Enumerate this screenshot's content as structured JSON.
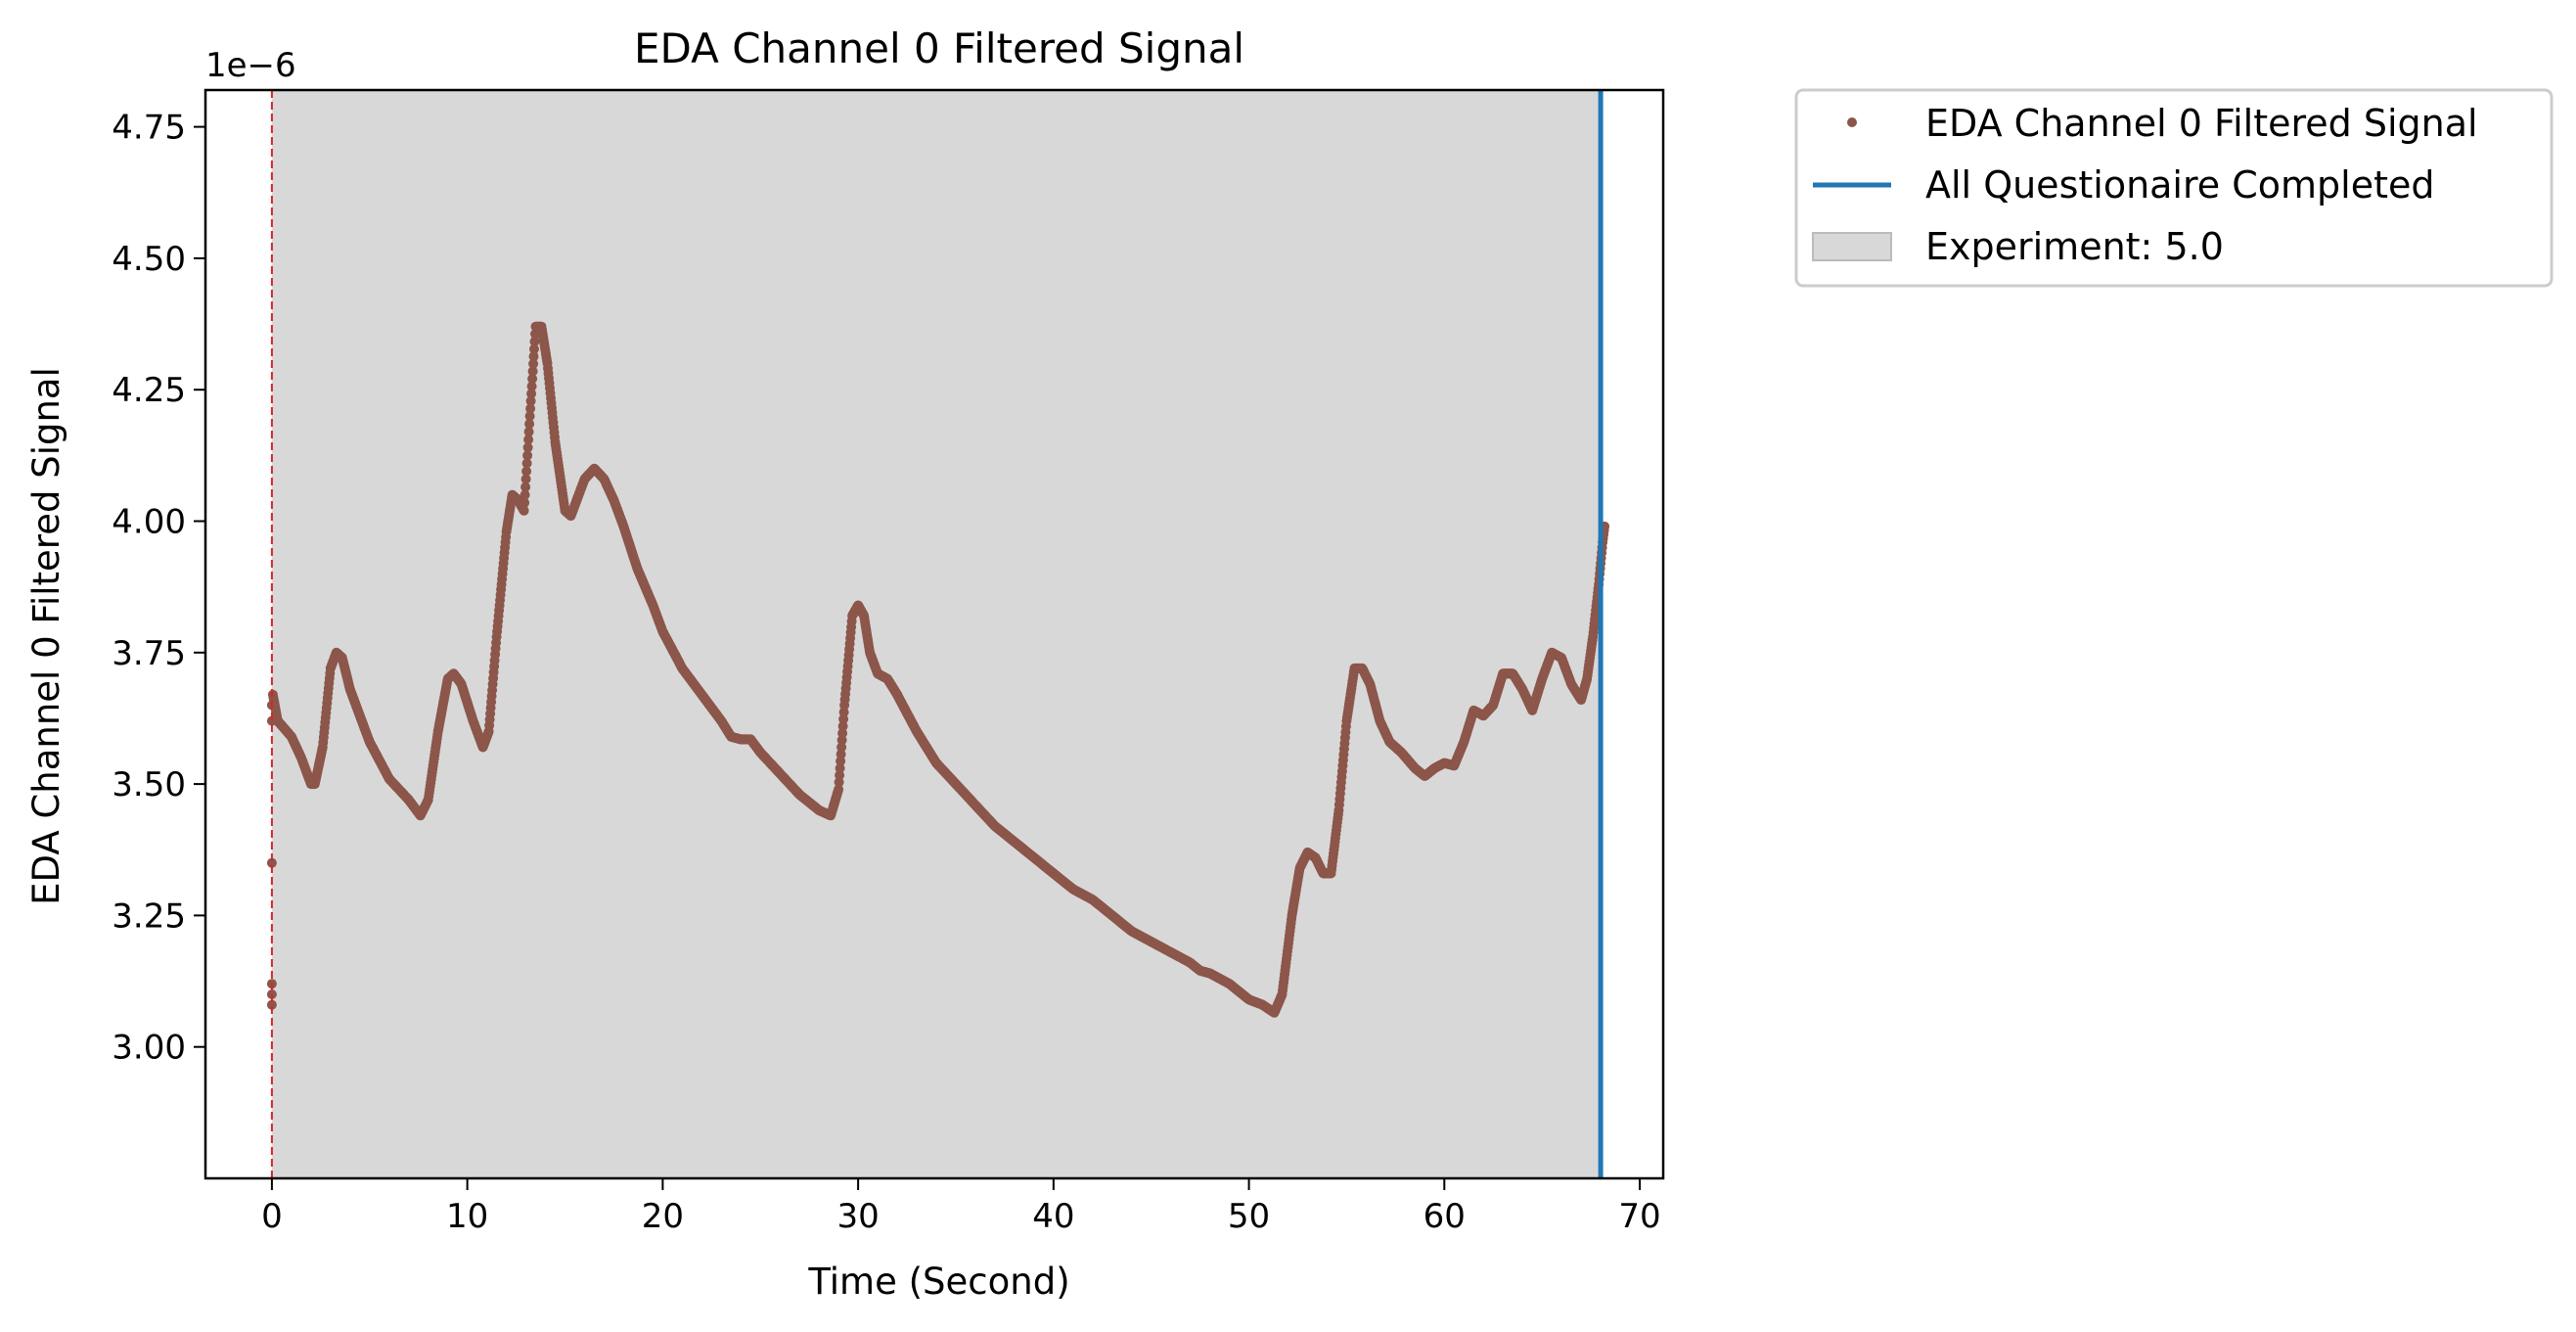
{
  "chart_data": {
    "type": "scatter",
    "title": "EDA Channel 0 Filtered Signal",
    "xlabel": "Time (Second)",
    "ylabel": "EDA Channel 0 Filtered Signal",
    "y_offset_label": "1e−6",
    "xlim": [
      -3.4,
      71.2
    ],
    "ylim": [
      2.75,
      4.82
    ],
    "x_ticks": [
      0,
      10,
      20,
      30,
      40,
      50,
      60,
      70
    ],
    "x_tick_labels": [
      "0",
      "10",
      "20",
      "30",
      "40",
      "50",
      "60",
      "70"
    ],
    "y_ticks": [
      3.0,
      3.25,
      3.5,
      3.75,
      4.0,
      4.25,
      4.5,
      4.75
    ],
    "y_tick_labels": [
      "3.00",
      "3.25",
      "3.50",
      "3.75",
      "4.00",
      "4.25",
      "4.50",
      "4.75"
    ],
    "grid": false,
    "legend_position": "outside-upper-right",
    "shaded_region": {
      "x_start": 0.0,
      "x_end": 68.0,
      "color": "#d8d8d8",
      "label": "Experiment: 5.0"
    },
    "vertical_lines": [
      {
        "x": 0.0,
        "color": "#d62728",
        "style": "dashed",
        "label": ""
      },
      {
        "x": 68.0,
        "color": "#1f77b4",
        "style": "solid",
        "label": "All Questionaire Completed"
      }
    ],
    "series": [
      {
        "name": "EDA Channel 0 Filtered Signal",
        "color": "#8c564b",
        "points": [
          [
            0.0,
            3.08
          ],
          [
            0.0,
            3.1
          ],
          [
            0.0,
            3.12
          ],
          [
            0.0,
            3.35
          ],
          [
            0.0,
            3.62
          ],
          [
            0.0,
            3.65
          ],
          [
            0.05,
            3.67
          ],
          [
            0.3,
            3.62
          ],
          [
            1.0,
            3.59
          ],
          [
            1.5,
            3.55
          ],
          [
            2.0,
            3.5
          ],
          [
            2.2,
            3.5
          ],
          [
            2.6,
            3.57
          ],
          [
            3.0,
            3.72
          ],
          [
            3.3,
            3.75
          ],
          [
            3.6,
            3.74
          ],
          [
            4.0,
            3.68
          ],
          [
            5.0,
            3.58
          ],
          [
            6.0,
            3.51
          ],
          [
            7.0,
            3.47
          ],
          [
            7.6,
            3.44
          ],
          [
            8.0,
            3.47
          ],
          [
            8.5,
            3.6
          ],
          [
            9.0,
            3.7
          ],
          [
            9.3,
            3.71
          ],
          [
            9.7,
            3.69
          ],
          [
            10.3,
            3.62
          ],
          [
            10.8,
            3.57
          ],
          [
            11.1,
            3.6
          ],
          [
            11.5,
            3.78
          ],
          [
            12.0,
            3.98
          ],
          [
            12.3,
            4.05
          ],
          [
            12.6,
            4.04
          ],
          [
            12.9,
            4.02
          ],
          [
            13.2,
            4.2
          ],
          [
            13.5,
            4.37
          ],
          [
            13.8,
            4.37
          ],
          [
            14.1,
            4.3
          ],
          [
            14.5,
            4.15
          ],
          [
            15.0,
            4.02
          ],
          [
            15.3,
            4.01
          ],
          [
            15.6,
            4.04
          ],
          [
            16.0,
            4.08
          ],
          [
            16.5,
            4.1
          ],
          [
            17.0,
            4.08
          ],
          [
            17.5,
            4.04
          ],
          [
            18.0,
            3.99
          ],
          [
            18.7,
            3.91
          ],
          [
            19.5,
            3.84
          ],
          [
            20.0,
            3.79
          ],
          [
            21.0,
            3.72
          ],
          [
            22.0,
            3.67
          ],
          [
            23.0,
            3.62
          ],
          [
            23.5,
            3.59
          ],
          [
            24.0,
            3.585
          ],
          [
            24.5,
            3.585
          ],
          [
            25.0,
            3.56
          ],
          [
            26.0,
            3.52
          ],
          [
            27.0,
            3.48
          ],
          [
            28.0,
            3.45
          ],
          [
            28.6,
            3.44
          ],
          [
            29.0,
            3.49
          ],
          [
            29.3,
            3.65
          ],
          [
            29.7,
            3.82
          ],
          [
            30.0,
            3.84
          ],
          [
            30.3,
            3.82
          ],
          [
            30.6,
            3.75
          ],
          [
            31.0,
            3.71
          ],
          [
            31.5,
            3.7
          ],
          [
            32.0,
            3.67
          ],
          [
            33.0,
            3.6
          ],
          [
            34.0,
            3.54
          ],
          [
            35.0,
            3.5
          ],
          [
            36.0,
            3.46
          ],
          [
            37.0,
            3.42
          ],
          [
            38.0,
            3.39
          ],
          [
            39.0,
            3.36
          ],
          [
            40.0,
            3.33
          ],
          [
            41.0,
            3.3
          ],
          [
            42.0,
            3.28
          ],
          [
            43.0,
            3.25
          ],
          [
            44.0,
            3.22
          ],
          [
            45.0,
            3.2
          ],
          [
            46.0,
            3.18
          ],
          [
            47.0,
            3.16
          ],
          [
            47.5,
            3.145
          ],
          [
            48.0,
            3.14
          ],
          [
            49.0,
            3.12
          ],
          [
            50.0,
            3.09
          ],
          [
            50.7,
            3.08
          ],
          [
            51.3,
            3.065
          ],
          [
            51.7,
            3.1
          ],
          [
            52.2,
            3.25
          ],
          [
            52.6,
            3.34
          ],
          [
            53.0,
            3.37
          ],
          [
            53.4,
            3.36
          ],
          [
            53.8,
            3.33
          ],
          [
            54.2,
            3.33
          ],
          [
            54.6,
            3.45
          ],
          [
            55.0,
            3.62
          ],
          [
            55.4,
            3.72
          ],
          [
            55.8,
            3.72
          ],
          [
            56.2,
            3.69
          ],
          [
            56.7,
            3.62
          ],
          [
            57.2,
            3.58
          ],
          [
            57.8,
            3.56
          ],
          [
            58.5,
            3.53
          ],
          [
            59.0,
            3.515
          ],
          [
            59.5,
            3.53
          ],
          [
            60.0,
            3.54
          ],
          [
            60.5,
            3.535
          ],
          [
            61.0,
            3.58
          ],
          [
            61.5,
            3.64
          ],
          [
            62.0,
            3.63
          ],
          [
            62.5,
            3.65
          ],
          [
            63.0,
            3.71
          ],
          [
            63.5,
            3.71
          ],
          [
            64.0,
            3.68
          ],
          [
            64.5,
            3.64
          ],
          [
            65.0,
            3.7
          ],
          [
            65.5,
            3.75
          ],
          [
            66.0,
            3.74
          ],
          [
            66.5,
            3.69
          ],
          [
            67.0,
            3.66
          ],
          [
            67.3,
            3.7
          ],
          [
            67.6,
            3.78
          ],
          [
            67.9,
            3.88
          ],
          [
            68.1,
            3.96
          ],
          [
            68.2,
            3.99
          ]
        ]
      }
    ]
  }
}
